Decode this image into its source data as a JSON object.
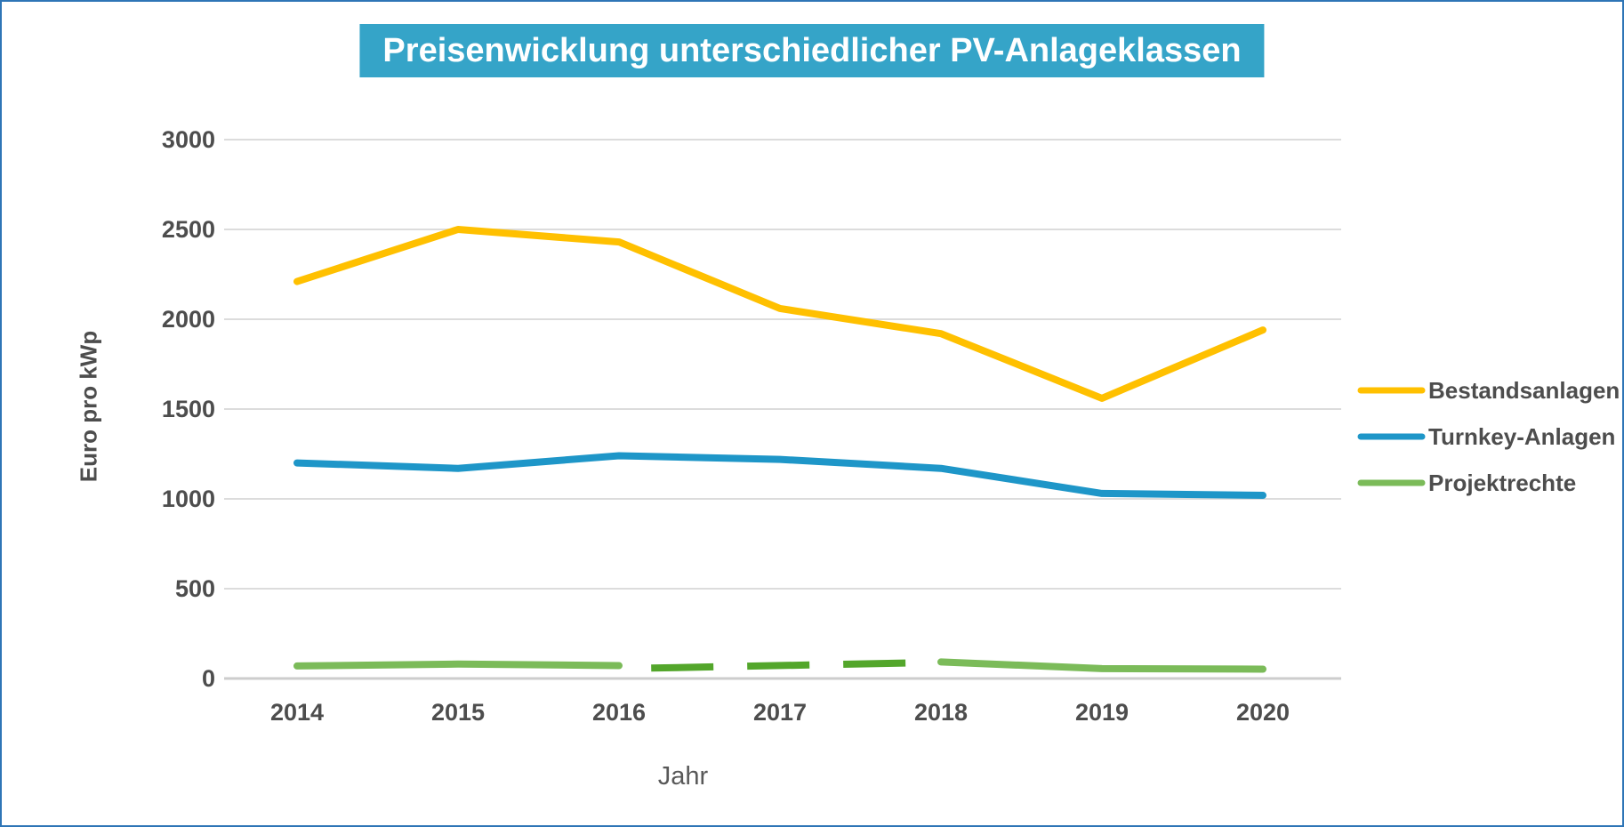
{
  "frame": {
    "border_color": "#2E75B6",
    "background_color": "#FFFFFF"
  },
  "title": {
    "text": "Preisenwicklung unterschiedlicher PV-Anlageklassen",
    "bg_color": "#35A4C8",
    "text_color": "#FFFFFF"
  },
  "chart_data": {
    "type": "line",
    "title": "Preisenwicklung unterschiedlicher PV-Anlageklassen",
    "xlabel": "Jahr",
    "ylabel": "Euro pro kWp",
    "categories": [
      "2014",
      "2015",
      "2016",
      "2017",
      "2018",
      "2019",
      "2020"
    ],
    "y_ticks": [
      3000,
      2500,
      2000,
      1500,
      1000,
      500,
      0
    ],
    "ylim": [
      0,
      3000
    ],
    "grid": "horizontal",
    "gridline_color": "#DCDCDC",
    "axis_text_color": "#4d4d4d",
    "legend_position": "right",
    "series": [
      {
        "name": "Bestandsanlagen",
        "color": "#FFC000",
        "style": "solid",
        "x": [
          2014,
          2015,
          2016,
          2017,
          2018,
          2019,
          2020
        ],
        "values": [
          2210,
          2500,
          2430,
          2060,
          1920,
          1560,
          1940
        ]
      },
      {
        "name": "Turnkey-Anlagen",
        "color": "#1E96C8",
        "style": "solid",
        "x": [
          2014,
          2015,
          2016,
          2017,
          2018,
          2019,
          2020
        ],
        "values": [
          1200,
          1170,
          1240,
          1220,
          1170,
          1030,
          1020
        ]
      },
      {
        "name": "Projektrechte",
        "color": "#7BBB59",
        "segments": [
          {
            "style": "solid",
            "color": "#7BBB59",
            "points": [
              [
                2014,
                70
              ],
              [
                2015,
                80
              ],
              [
                2016,
                72
              ]
            ]
          },
          {
            "style": "dashed",
            "color": "#53A62B",
            "points": [
              [
                2016.2,
                58
              ],
              [
                2017.9,
                88
              ]
            ]
          },
          {
            "style": "solid",
            "color": "#7BBB59",
            "points": [
              [
                2018,
                92
              ],
              [
                2019,
                55
              ],
              [
                2020,
                52
              ]
            ]
          }
        ]
      }
    ]
  }
}
